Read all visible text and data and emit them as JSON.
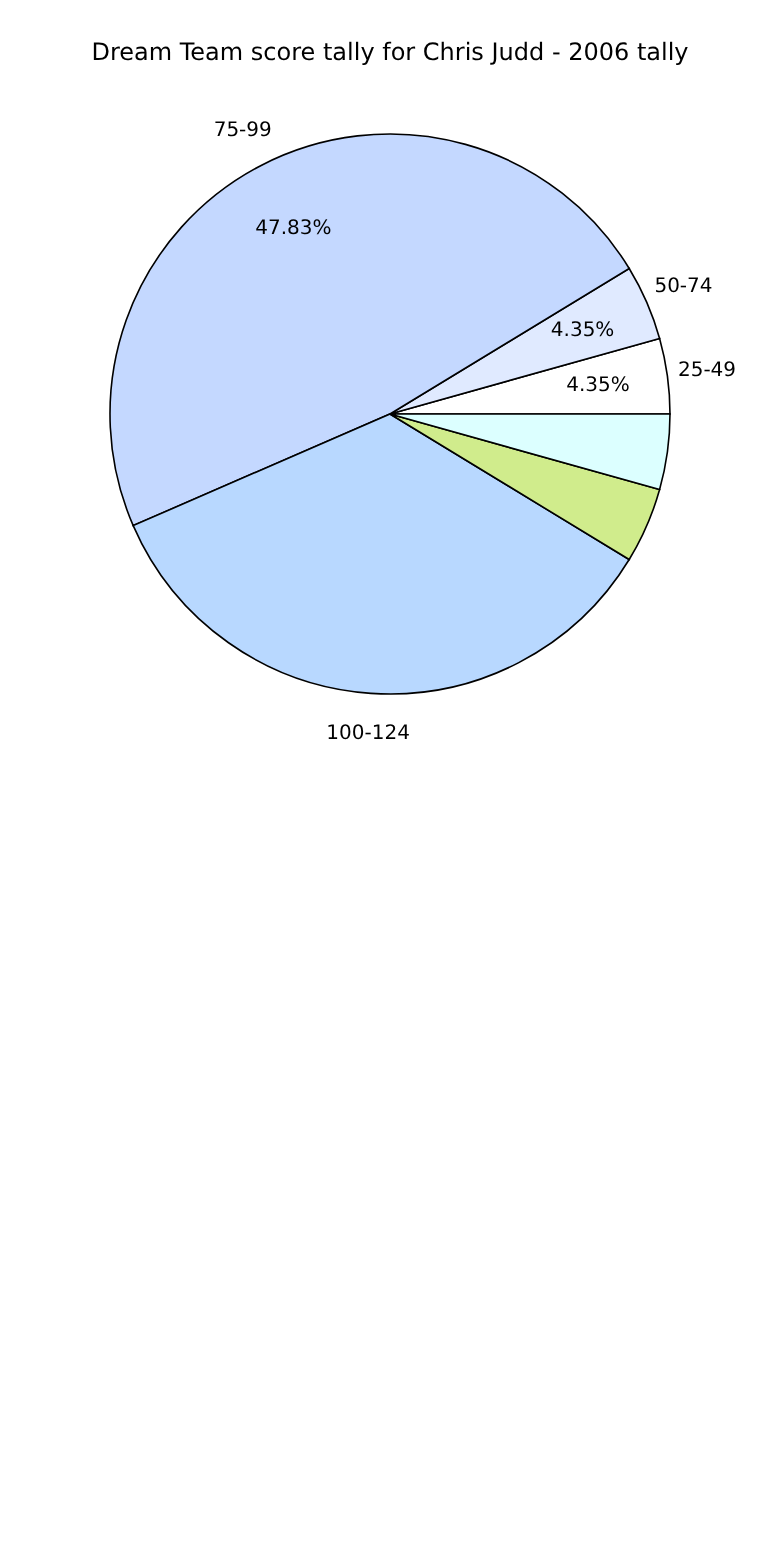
{
  "chart_data": {
    "type": "pie",
    "title": "Dream Team score tally for Chris Judd - 2006 tally",
    "categories": [
      "25-49",
      "50-74",
      "75-99",
      "100-124",
      null,
      null
    ],
    "values": [
      4.35,
      4.35,
      47.83,
      34.78,
      4.35,
      4.35
    ],
    "value_labels": [
      "4.35%",
      "4.35%",
      "47.83%",
      null,
      null,
      null
    ],
    "colors": [
      "#ffffff",
      "#e0eaff",
      "#c4d8ff",
      "#b8d8ff",
      "#d0ec8c",
      "#dcffff"
    ],
    "legend": false
  }
}
